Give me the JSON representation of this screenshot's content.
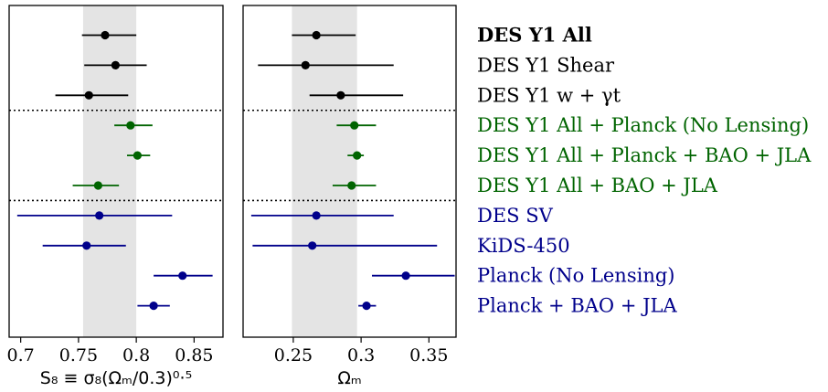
{
  "chart_data": [
    {
      "type": "scatter",
      "variant": "error-bar",
      "xlabel": "S₈ ≡ σ₈(Ωₘ/0.3)⁰·⁵",
      "xticks": [
        0.7,
        0.75,
        0.8,
        0.85
      ],
      "xlim": [
        0.69,
        0.875
      ],
      "band": [
        0.754,
        0.8
      ],
      "band_color": "#e4e4e4",
      "series": [
        {
          "name": "DES Y1 All",
          "center": 0.773,
          "low": 0.753,
          "high": 0.8
        },
        {
          "name": "DES Y1 Shear",
          "center": 0.782,
          "low": 0.755,
          "high": 0.809
        },
        {
          "name": "DES Y1 w + γt",
          "center": 0.759,
          "low": 0.73,
          "high": 0.793
        },
        {
          "name": "DES Y1 All + Planck (No Lensing)",
          "center": 0.795,
          "low": 0.781,
          "high": 0.814
        },
        {
          "name": "DES Y1 All + Planck + BAO + JLA",
          "center": 0.801,
          "low": 0.792,
          "high": 0.812
        },
        {
          "name": "DES Y1 All + BAO + JLA",
          "center": 0.767,
          "low": 0.745,
          "high": 0.785
        },
        {
          "name": "DES SV",
          "center": 0.768,
          "low": 0.697,
          "high": 0.831
        },
        {
          "name": "KiDS-450",
          "center": 0.757,
          "low": 0.719,
          "high": 0.791
        },
        {
          "name": "Planck (No Lensing)",
          "center": 0.84,
          "low": 0.815,
          "high": 0.866
        },
        {
          "name": "Planck + BAO + JLA",
          "center": 0.815,
          "low": 0.801,
          "high": 0.829
        }
      ]
    },
    {
      "type": "scatter",
      "variant": "error-bar",
      "xlabel": "Ωₘ",
      "xticks": [
        0.25,
        0.3,
        0.35
      ],
      "xlim": [
        0.213,
        0.37
      ],
      "band": [
        0.249,
        0.297
      ],
      "band_color": "#e4e4e4",
      "series": [
        {
          "name": "DES Y1 All",
          "center": 0.267,
          "low": 0.249,
          "high": 0.296
        },
        {
          "name": "DES Y1 Shear",
          "center": 0.259,
          "low": 0.224,
          "high": 0.324
        },
        {
          "name": "DES Y1 w + γt",
          "center": 0.285,
          "low": 0.262,
          "high": 0.331
        },
        {
          "name": "DES Y1 All + Planck (No Lensing)",
          "center": 0.295,
          "low": 0.282,
          "high": 0.311
        },
        {
          "name": "DES Y1 All + Planck + BAO + JLA",
          "center": 0.297,
          "low": 0.29,
          "high": 0.302
        },
        {
          "name": "DES Y1 All + BAO + JLA",
          "center": 0.293,
          "low": 0.279,
          "high": 0.311
        },
        {
          "name": "DES SV",
          "center": 0.267,
          "low": 0.219,
          "high": 0.324
        },
        {
          "name": "KiDS-450",
          "center": 0.264,
          "low": 0.22,
          "high": 0.356
        },
        {
          "name": "Planck (No Lensing)",
          "center": 0.333,
          "low": 0.308,
          "high": 0.369
        },
        {
          "name": "Planck + BAO + JLA",
          "center": 0.304,
          "low": 0.298,
          "high": 0.311
        }
      ]
    }
  ],
  "legend": [
    {
      "label": "DES Y1 All",
      "color": "#000000",
      "bold": true
    },
    {
      "label": "DES Y1 Shear",
      "color": "#000000",
      "bold": false
    },
    {
      "label": "DES Y1 w + γt",
      "color": "#000000",
      "bold": false
    },
    {
      "label": "DES Y1 All + Planck (No Lensing)",
      "color": "#006400",
      "bold": false
    },
    {
      "label": "DES Y1 All + Planck + BAO + JLA",
      "color": "#006400",
      "bold": false
    },
    {
      "label": "DES Y1 All + BAO + JLA",
      "color": "#006400",
      "bold": false
    },
    {
      "label": "DES SV",
      "color": "#00008b",
      "bold": false
    },
    {
      "label": "KiDS-450",
      "color": "#00008b",
      "bold": false
    },
    {
      "label": "Planck (No Lensing)",
      "color": "#00008b",
      "bold": false
    },
    {
      "label": "Planck + BAO + JLA",
      "color": "#00008b",
      "bold": false
    }
  ],
  "group_separators_after": [
    3,
    6
  ]
}
